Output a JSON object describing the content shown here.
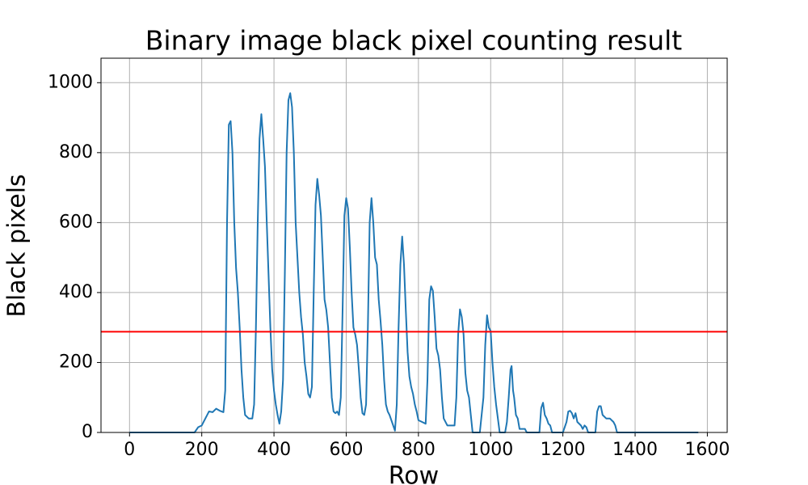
{
  "chart_data": {
    "type": "line",
    "title": "Binary image black pixel counting result",
    "x_label": "Row",
    "y_label": "Black pixels",
    "xlim": [
      -79,
      1655
    ],
    "ylim": [
      0,
      1070
    ],
    "xticks": [
      0,
      200,
      400,
      600,
      800,
      1000,
      1200,
      1400,
      1600
    ],
    "yticks": [
      0,
      200,
      400,
      600,
      800,
      1000
    ],
    "grid": true,
    "hlines": [
      {
        "value": 288,
        "color": "#ff0000"
      }
    ],
    "series": [
      {
        "color": "#1f77b4",
        "x": [
          0,
          180,
          190,
          200,
          210,
          220,
          230,
          240,
          250,
          260,
          265,
          270,
          275,
          280,
          285,
          290,
          295,
          300,
          305,
          310,
          315,
          320,
          330,
          340,
          345,
          350,
          355,
          360,
          365,
          370,
          375,
          380,
          385,
          390,
          395,
          400,
          405,
          410,
          415,
          420,
          425,
          430,
          435,
          440,
          445,
          450,
          455,
          460,
          465,
          470,
          475,
          480,
          485,
          490,
          495,
          500,
          505,
          510,
          515,
          520,
          525,
          530,
          535,
          540,
          545,
          550,
          555,
          560,
          565,
          570,
          575,
          580,
          585,
          590,
          595,
          600,
          605,
          610,
          615,
          620,
          625,
          630,
          635,
          640,
          645,
          650,
          655,
          660,
          665,
          670,
          675,
          680,
          685,
          690,
          695,
          700,
          705,
          710,
          715,
          720,
          730,
          735,
          740,
          745,
          750,
          755,
          760,
          765,
          770,
          775,
          780,
          785,
          790,
          795,
          800,
          810,
          820,
          825,
          830,
          835,
          840,
          845,
          850,
          855,
          860,
          865,
          870,
          880,
          900,
          905,
          910,
          915,
          920,
          925,
          930,
          935,
          940,
          945,
          950,
          970,
          980,
          985,
          990,
          995,
          1000,
          1005,
          1010,
          1015,
          1020,
          1025,
          1040,
          1045,
          1050,
          1055,
          1058,
          1062,
          1065,
          1070,
          1075,
          1080,
          1095,
          1100,
          1135,
          1140,
          1145,
          1150,
          1155,
          1160,
          1165,
          1170,
          1200,
          1210,
          1215,
          1220,
          1225,
          1230,
          1235,
          1240,
          1250,
          1255,
          1260,
          1265,
          1270,
          1290,
          1295,
          1300,
          1305,
          1310,
          1320,
          1330,
          1340,
          1345,
          1350,
          1575
        ],
        "values": [
          0,
          0,
          15,
          20,
          40,
          60,
          58,
          68,
          62,
          58,
          120,
          600,
          880,
          890,
          800,
          600,
          470,
          400,
          300,
          180,
          100,
          50,
          40,
          40,
          80,
          300,
          600,
          840,
          910,
          840,
          760,
          600,
          450,
          300,
          180,
          120,
          80,
          50,
          25,
          60,
          150,
          450,
          800,
          950,
          970,
          930,
          800,
          600,
          500,
          400,
          330,
          280,
          200,
          160,
          110,
          100,
          130,
          400,
          650,
          725,
          680,
          620,
          500,
          380,
          350,
          300,
          200,
          100,
          60,
          55,
          60,
          50,
          100,
          350,
          620,
          670,
          640,
          530,
          400,
          300,
          280,
          250,
          180,
          100,
          55,
          50,
          80,
          300,
          600,
          670,
          600,
          500,
          480,
          380,
          320,
          250,
          150,
          80,
          60,
          50,
          20,
          5,
          80,
          300,
          480,
          560,
          480,
          350,
          230,
          160,
          130,
          110,
          80,
          60,
          35,
          30,
          25,
          150,
          380,
          418,
          405,
          330,
          240,
          220,
          180,
          100,
          40,
          20,
          20,
          100,
          280,
          352,
          330,
          280,
          170,
          120,
          100,
          50,
          0,
          0,
          100,
          250,
          335,
          300,
          290,
          200,
          130,
          80,
          40,
          0,
          0,
          30,
          100,
          180,
          190,
          120,
          100,
          50,
          40,
          10,
          10,
          0,
          0,
          70,
          85,
          50,
          40,
          25,
          20,
          0,
          0,
          30,
          60,
          62,
          55,
          40,
          55,
          30,
          20,
          10,
          20,
          15,
          0,
          0,
          60,
          75,
          75,
          50,
          40,
          40,
          30,
          20,
          0,
          0
        ]
      }
    ]
  }
}
